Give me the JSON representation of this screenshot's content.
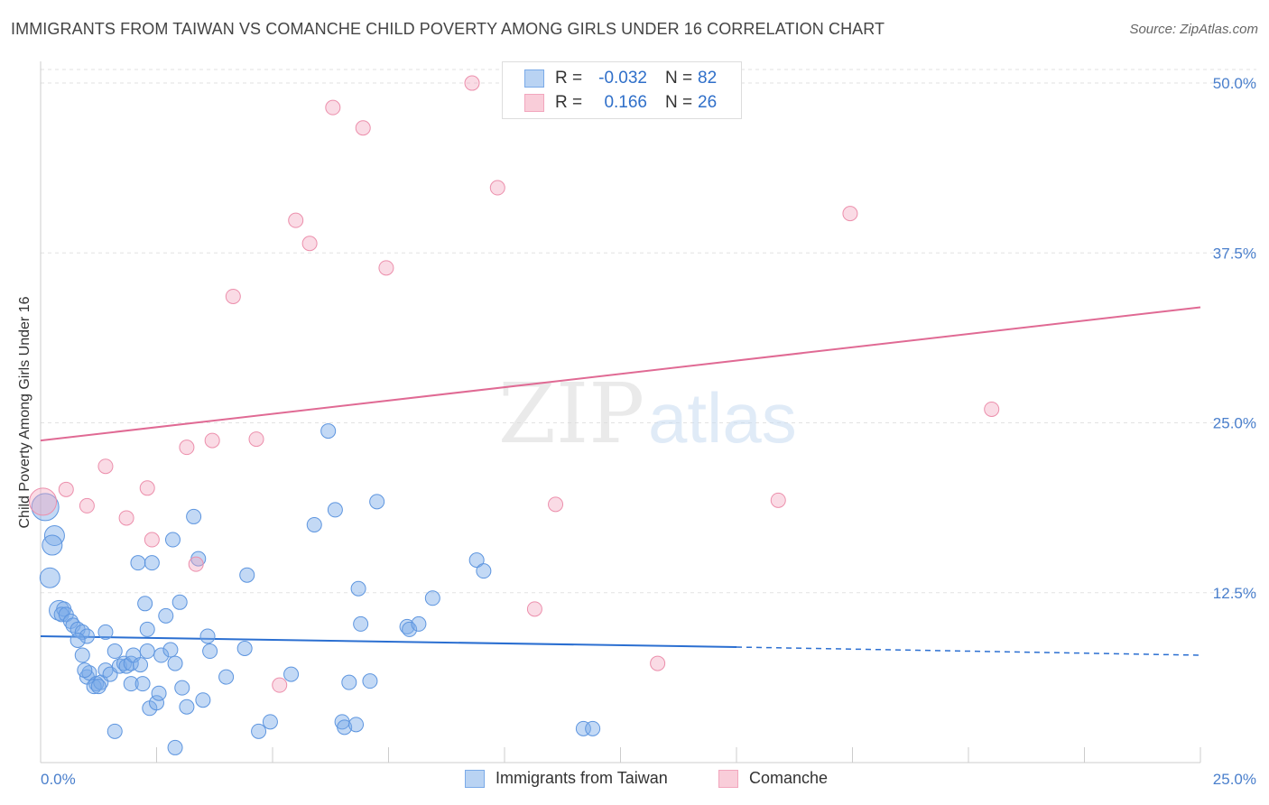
{
  "title": "IMMIGRANTS FROM TAIWAN VS COMANCHE CHILD POVERTY AMONG GIRLS UNDER 16 CORRELATION CHART",
  "source": "Source: ZipAtlas.com",
  "watermark": {
    "zip": "ZIP",
    "atlas": "atlas"
  },
  "legend": {
    "rows": [
      {
        "r_label": "R =",
        "r_value": "-0.032",
        "n_label": "N =",
        "n_value": "82"
      },
      {
        "r_label": "R =",
        "r_value": "0.166",
        "n_label": "N =",
        "n_value": "26"
      }
    ]
  },
  "chart_data": {
    "type": "scatter",
    "title": "IMMIGRANTS FROM TAIWAN VS COMANCHE CHILD POVERTY AMONG GIRLS UNDER 16 CORRELATION CHART",
    "xlabel": "",
    "ylabel": "Child Poverty Among Girls Under 16",
    "xlim": [
      0,
      25
    ],
    "ylim": [
      0,
      51
    ],
    "x_tick_labels": [
      "0.0%",
      "25.0%"
    ],
    "y_ticks": [
      12.5,
      25.0,
      37.5,
      50.0
    ],
    "y_tick_labels": [
      "12.5%",
      "25.0%",
      "37.5%",
      "50.0%"
    ],
    "grid": true,
    "colors": {
      "taiwan": "#7aaae8",
      "taiwan_line": "#2b6fd1",
      "comanche": "#f2a6bd",
      "comanche_line": "#e06a94"
    },
    "series": [
      {
        "name": "Immigrants from Taiwan",
        "r": -0.032,
        "n": 82,
        "trend": {
          "x0": 0,
          "y0": 9.3,
          "x1": 15,
          "y1": 8.5,
          "dash_to_x": 25,
          "dash_to_y": 7.9
        },
        "points": [
          [
            0.1,
            18.8
          ],
          [
            0.3,
            16.7
          ],
          [
            0.25,
            16.0
          ],
          [
            0.2,
            13.6
          ],
          [
            0.4,
            11.2
          ],
          [
            0.5,
            11.3
          ],
          [
            0.45,
            10.9
          ],
          [
            0.55,
            10.9
          ],
          [
            0.65,
            10.4
          ],
          [
            0.7,
            10.1
          ],
          [
            0.8,
            9.8
          ],
          [
            0.9,
            9.6
          ],
          [
            1.0,
            9.3
          ],
          [
            0.8,
            9.0
          ],
          [
            0.9,
            7.9
          ],
          [
            1.4,
            9.6
          ],
          [
            1.6,
            8.2
          ],
          [
            1.0,
            6.3
          ],
          [
            1.05,
            6.6
          ],
          [
            1.2,
            5.8
          ],
          [
            1.15,
            5.6
          ],
          [
            1.3,
            5.9
          ],
          [
            1.4,
            6.8
          ],
          [
            1.5,
            6.5
          ],
          [
            1.7,
            7.1
          ],
          [
            1.8,
            7.3
          ],
          [
            1.85,
            7.1
          ],
          [
            1.95,
            7.3
          ],
          [
            1.95,
            5.8
          ],
          [
            2.0,
            7.9
          ],
          [
            2.1,
            14.7
          ],
          [
            2.2,
            5.8
          ],
          [
            2.25,
            11.7
          ],
          [
            2.3,
            9.8
          ],
          [
            2.35,
            4.0
          ],
          [
            2.3,
            8.2
          ],
          [
            2.4,
            14.7
          ],
          [
            2.5,
            4.4
          ],
          [
            2.55,
            5.1
          ],
          [
            2.6,
            7.9
          ],
          [
            2.7,
            10.8
          ],
          [
            2.8,
            8.3
          ],
          [
            2.85,
            16.4
          ],
          [
            2.9,
            7.3
          ],
          [
            3.0,
            11.8
          ],
          [
            3.05,
            5.5
          ],
          [
            3.15,
            4.1
          ],
          [
            3.3,
            18.1
          ],
          [
            3.4,
            15.0
          ],
          [
            3.5,
            4.6
          ],
          [
            3.6,
            9.3
          ],
          [
            3.65,
            8.2
          ],
          [
            4.0,
            6.3
          ],
          [
            4.4,
            8.4
          ],
          [
            4.45,
            13.8
          ],
          [
            4.7,
            2.3
          ],
          [
            4.95,
            3.0
          ],
          [
            5.4,
            6.5
          ],
          [
            5.9,
            17.5
          ],
          [
            6.2,
            24.4
          ],
          [
            6.35,
            18.6
          ],
          [
            6.5,
            3.0
          ],
          [
            6.55,
            2.6
          ],
          [
            6.65,
            5.9
          ],
          [
            6.8,
            2.8
          ],
          [
            6.85,
            12.8
          ],
          [
            6.9,
            10.2
          ],
          [
            7.1,
            6.0
          ],
          [
            7.25,
            19.2
          ],
          [
            7.9,
            10.0
          ],
          [
            7.95,
            9.8
          ],
          [
            8.15,
            10.2
          ],
          [
            8.45,
            12.1
          ],
          [
            9.4,
            14.9
          ],
          [
            9.55,
            14.1
          ],
          [
            11.7,
            2.5
          ],
          [
            11.9,
            2.5
          ],
          [
            1.6,
            2.3
          ],
          [
            2.9,
            1.1
          ],
          [
            0.95,
            6.8
          ],
          [
            1.25,
            5.6
          ],
          [
            2.15,
            7.2
          ]
        ]
      },
      {
        "name": "Comanche",
        "r": 0.166,
        "n": 26,
        "trend": {
          "x0": 0,
          "y0": 23.7,
          "x1": 25,
          "y1": 33.5
        },
        "points": [
          [
            0.05,
            19.2
          ],
          [
            0.55,
            20.1
          ],
          [
            1.0,
            18.9
          ],
          [
            1.4,
            21.8
          ],
          [
            1.85,
            18.0
          ],
          [
            2.3,
            20.2
          ],
          [
            2.4,
            16.4
          ],
          [
            3.15,
            23.2
          ],
          [
            3.35,
            14.6
          ],
          [
            3.7,
            23.7
          ],
          [
            4.15,
            34.3
          ],
          [
            4.65,
            23.8
          ],
          [
            5.15,
            5.7
          ],
          [
            5.5,
            39.9
          ],
          [
            5.8,
            38.2
          ],
          [
            6.3,
            48.2
          ],
          [
            6.95,
            46.7
          ],
          [
            7.45,
            36.4
          ],
          [
            9.3,
            50.0
          ],
          [
            9.85,
            42.3
          ],
          [
            11.1,
            19.0
          ],
          [
            10.65,
            11.3
          ],
          [
            13.3,
            7.3
          ],
          [
            15.9,
            19.3
          ],
          [
            17.45,
            40.4
          ],
          [
            20.5,
            26.0
          ]
        ]
      }
    ]
  }
}
